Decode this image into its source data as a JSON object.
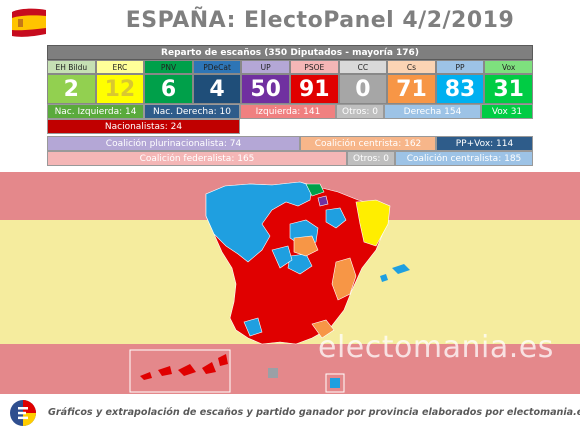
{
  "title": "ESPAÑA: ElectoPanel 4/2/2019",
  "header": "Reparto de escaños (350 Diputados - mayoría 176)",
  "footer": "Gráficos y extrapolación de escaños y partido ganador por provincia elaborados por electomania.es",
  "watermark": "electomania.es",
  "chart_data": {
    "type": "table",
    "parties": [
      {
        "name": "EH Bildu",
        "seats": "2",
        "color": "#92d050",
        "name_bg": "#c6e0b4",
        "text": "#ffffff"
      },
      {
        "name": "ERC",
        "seats": "12",
        "color": "#ffff00",
        "name_bg": "#ffff99",
        "text": "#d9c830"
      },
      {
        "name": "PNV",
        "seats": "6",
        "color": "#00a04a",
        "name_bg": "#00a04a",
        "text": "#ffffff"
      },
      {
        "name": "PDeCat",
        "seats": "4",
        "color": "#1f4e79",
        "name_bg": "#2e75b6",
        "text": "#ffffff"
      },
      {
        "name": "UP",
        "seats": "50",
        "color": "#7030a0",
        "name_bg": "#b4a7d6",
        "text": "#ffffff"
      },
      {
        "name": "PSOE",
        "seats": "91",
        "color": "#e00000",
        "name_bg": "#f4b6b6",
        "text": "#ffffff"
      },
      {
        "name": "CC",
        "seats": "0",
        "color": "#a6a6a6",
        "name_bg": "#d9d9d9",
        "text": "#ffffff"
      },
      {
        "name": "Cs",
        "seats": "71",
        "color": "#f79646",
        "name_bg": "#fbd4b4",
        "text": "#ffffff"
      },
      {
        "name": "PP",
        "seats": "83",
        "color": "#00b0f0",
        "name_bg": "#9dc3e6",
        "text": "#ffffff"
      },
      {
        "name": "Vox",
        "seats": "31",
        "color": "#00cc44",
        "name_bg": "#7ee07e",
        "text": "#ffffff"
      }
    ],
    "row3": [
      {
        "label": "Nac. Izquierda: 14",
        "bg": "#5aaa3c"
      },
      {
        "label": "Nac. Derecha: 10",
        "bg": "#2e5c8a"
      },
      {
        "label": "Izquierda: 141",
        "bg": "#f08080"
      },
      {
        "label": "Otros: 0",
        "bg": "#bfbfbf"
      },
      {
        "label": "Derecha 154",
        "bg": "#9dc3e6"
      },
      {
        "label": "Vox 31",
        "bg": "#00cc44"
      }
    ],
    "row4": [
      {
        "label": "Nacionalistas: 24",
        "bg": "#c00000"
      }
    ],
    "row5": [
      {
        "label": "Coalición plurinacionalista: 74",
        "bg": "#b4a7d6"
      },
      {
        "label": "Coalición centrista: 162",
        "bg": "#f7b68a"
      },
      {
        "label": "PP+Vox: 114",
        "bg": "#2e5c8a"
      }
    ],
    "row6": [
      {
        "label": "Coalición federalista: 165",
        "bg": "#f4b6b6"
      },
      {
        "label": "Otros: 0",
        "bg": "#bfbfbf"
      },
      {
        "label": "Coalición centralista: 185",
        "bg": "#9dc3e6"
      }
    ]
  },
  "colors": {
    "flag_red": "#c60b1e",
    "flag_yellow": "#ffc400",
    "map_bg_red": "#e4888b",
    "map_bg_yellow": "#f5ec9e"
  }
}
